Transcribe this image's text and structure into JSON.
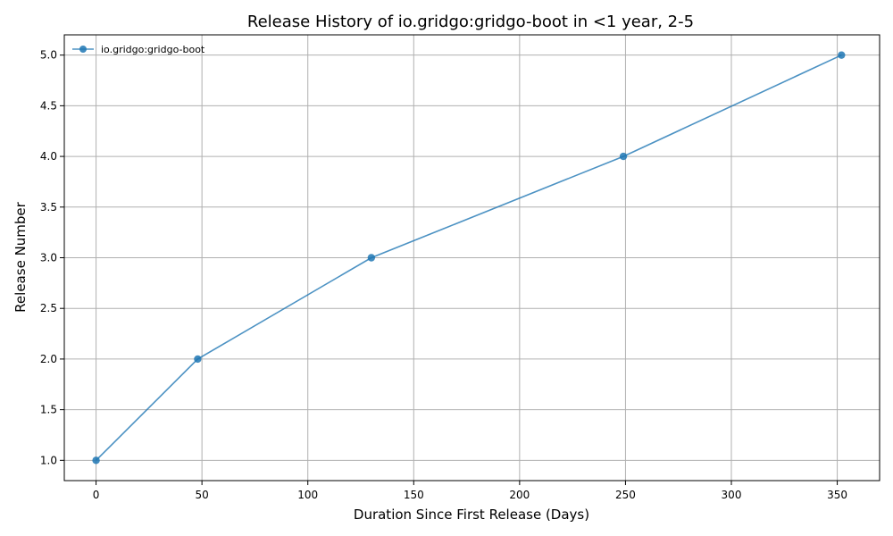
{
  "chart_data": {
    "type": "line",
    "title": "Release History of io.gridgo:gridgo-boot in <1 year, 2-5",
    "xlabel": "Duration Since First Release (Days)",
    "ylabel": "Release Number",
    "xlim": [
      -15,
      370
    ],
    "ylim": [
      0.8,
      5.2
    ],
    "xticks": [
      0,
      50,
      100,
      150,
      200,
      250,
      300,
      350
    ],
    "xtick_labels": [
      "0",
      "50",
      "100",
      "150",
      "200",
      "250",
      "300",
      "350"
    ],
    "yticks": [
      1.0,
      1.5,
      2.0,
      2.5,
      3.0,
      3.5,
      4.0,
      4.5,
      5.0
    ],
    "ytick_labels": [
      "1.0",
      "1.5",
      "2.0",
      "2.5",
      "3.0",
      "3.5",
      "4.0",
      "4.5",
      "5.0"
    ],
    "grid": true,
    "legend_position": "top-left",
    "series": [
      {
        "name": "io.gridgo:gridgo-boot",
        "color": "#1f77b4",
        "x": [
          0,
          48,
          130,
          249,
          352
        ],
        "y": [
          1,
          2,
          3,
          4,
          5
        ]
      }
    ]
  }
}
